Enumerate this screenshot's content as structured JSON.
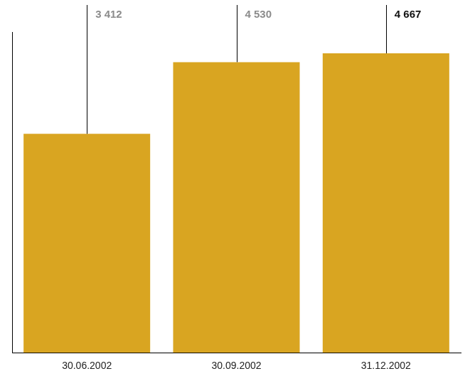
{
  "chart_data": {
    "type": "bar",
    "categories": [
      "30.06.2002",
      "30.09.2002",
      "31.12.2002"
    ],
    "values": [
      3412,
      4530,
      4667
    ],
    "value_labels": [
      "3 412",
      "4 530",
      "4 667"
    ],
    "color": "#d9a521",
    "ylim": [
      0,
      5000
    ],
    "grid": false,
    "data_labels": true,
    "tick_labels": "x"
  }
}
